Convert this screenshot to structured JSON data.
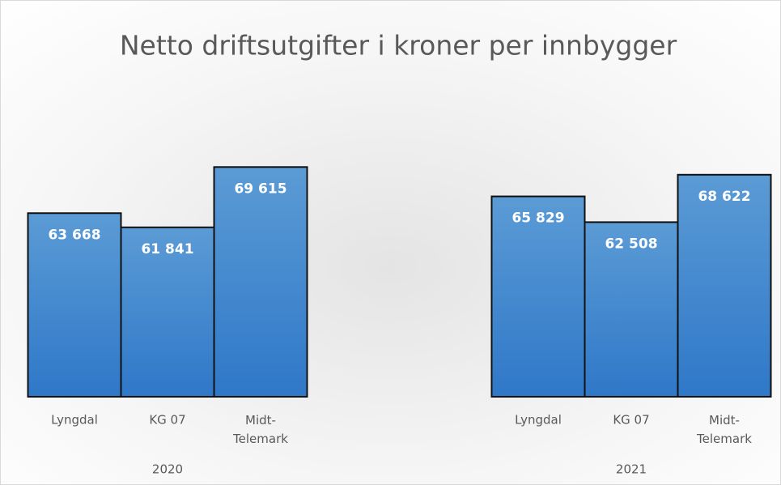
{
  "chart_data": {
    "type": "bar",
    "title": "Netto driftsutgifter i kroner per innbygger",
    "groups": [
      "2020",
      "2021"
    ],
    "categories": [
      "Lyngdal",
      "KG 07",
      "Midt-Telemark",
      "Lyngdal",
      "KG 07",
      "Midt-Telemark"
    ],
    "values": [
      63668,
      61841,
      69615,
      65829,
      62508,
      68622
    ],
    "value_labels": [
      "63 668",
      "61 841",
      "69 615",
      "65 829",
      "62 508",
      "68 622"
    ],
    "color": "#4a8fd6",
    "ylim": [
      40000,
      70000
    ]
  }
}
